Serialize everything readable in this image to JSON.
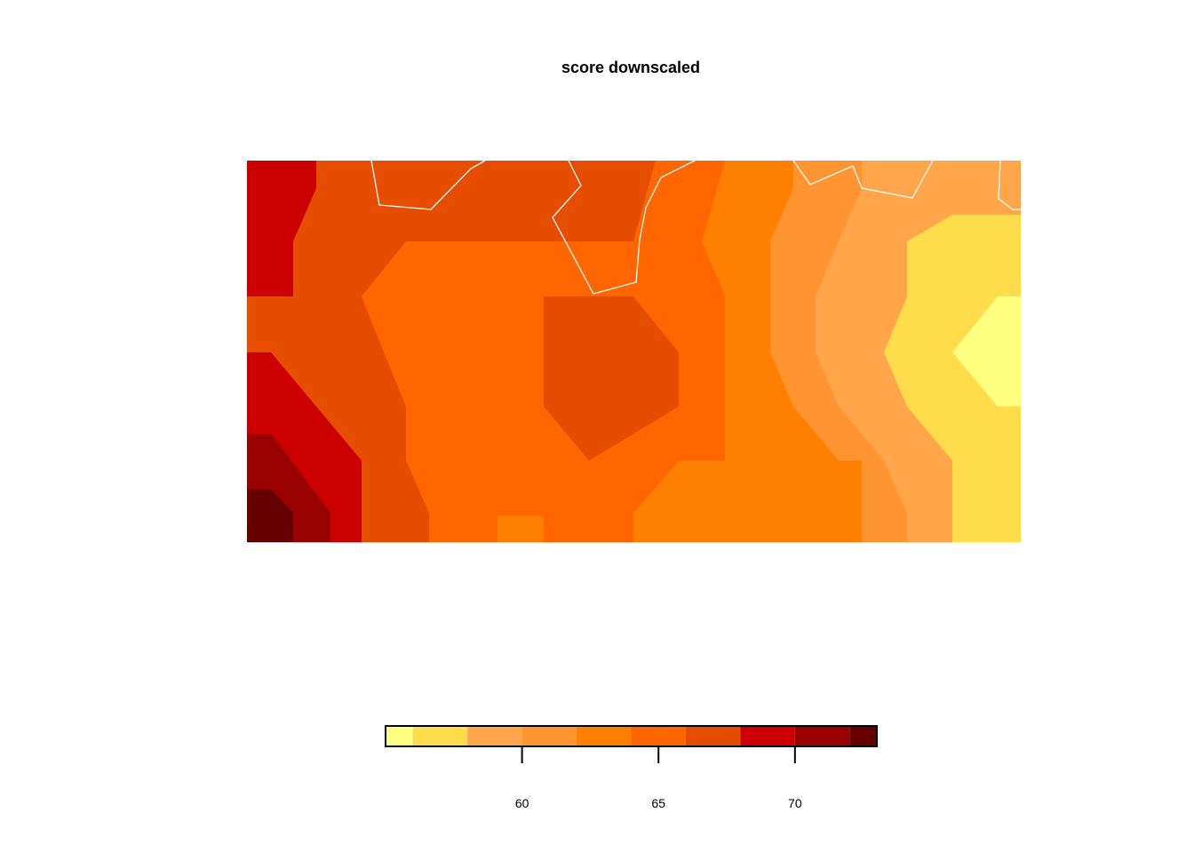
{
  "chart_data": {
    "type": "heatmap",
    "title": "score downscaled",
    "color_levels": [
      {
        "from": 55,
        "to": 56,
        "color": "#FFFF80"
      },
      {
        "from": 56,
        "to": 58,
        "color": "#FFDC4B"
      },
      {
        "from": 58,
        "to": 60,
        "color": "#FFA64A"
      },
      {
        "from": 60,
        "to": 62,
        "color": "#FF9430"
      },
      {
        "from": 62,
        "to": 64,
        "color": "#FF8000"
      },
      {
        "from": 64,
        "to": 66,
        "color": "#FF6600"
      },
      {
        "from": 66,
        "to": 68,
        "color": "#E54E00"
      },
      {
        "from": 68,
        "to": 70,
        "color": "#CC0000"
      },
      {
        "from": 70,
        "to": 72,
        "color": "#990000"
      },
      {
        "from": 72,
        "to": 73,
        "color": "#660000"
      }
    ],
    "legend": {
      "range": [
        55,
        73
      ],
      "ticks": [
        60,
        65,
        70
      ],
      "tick_labels": [
        "60",
        "65",
        "70"
      ],
      "placement": "bottom"
    },
    "region_outline_color": "#FFFFFF",
    "grid": false
  }
}
